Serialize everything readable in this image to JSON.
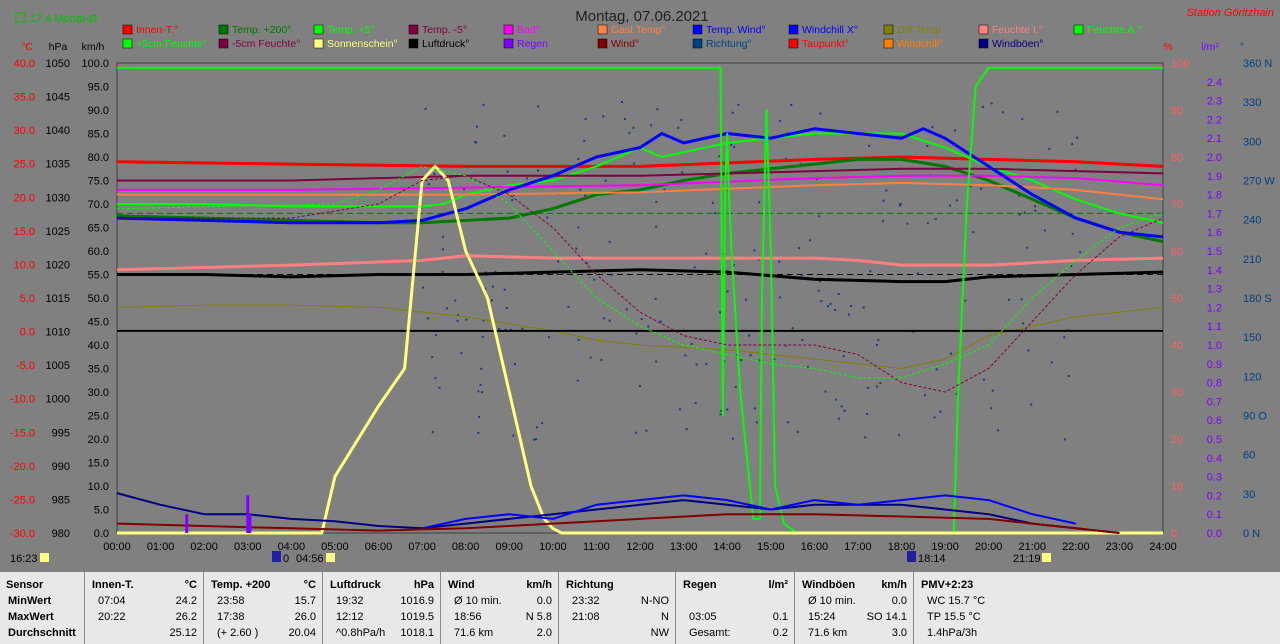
{
  "header": {
    "title": "Montag, 07.06.2021",
    "station": "Station Göritzhain",
    "monat": "17.4 Monat-Ø",
    "time_left": "16:23",
    "sunrise": "04:56",
    "sunset": "21:19",
    "moon": "18:14"
  },
  "legend": [
    {
      "label": "Innen-T.°",
      "color": "#ff0000"
    },
    {
      "label": "Temp. +200°",
      "color": "#007800"
    },
    {
      "label": "Temp. +5°",
      "color": "#00ff00"
    },
    {
      "label": "Temp. -5°",
      "color": "#800040"
    },
    {
      "label": "Bad°",
      "color": "#ff00ff"
    },
    {
      "label": "Gast Temp°",
      "color": "#ff8040"
    },
    {
      "label": "Temp. Wind°",
      "color": "#0000ff"
    },
    {
      "label": "Windchill X°",
      "color": "#0000ff"
    },
    {
      "label": "Diff Temp.",
      "color": "#808000"
    },
    {
      "label": "Feuchte I.°",
      "color": "#ff8080"
    },
    {
      "label": "Feuchte A.°",
      "color": "#00ff00"
    },
    {
      "label": "+5cm Feuchte°",
      "color": "#00ff00"
    },
    {
      "label": "-5cm Feuchte°",
      "color": "#800040"
    },
    {
      "label": "Sonnenschein°",
      "color": "#ffff80"
    },
    {
      "label": "Luftdruck°",
      "color": "#000000"
    },
    {
      "label": "Regen",
      "color": "#8000ff"
    },
    {
      "label": "Wind°",
      "color": "#800000"
    },
    {
      "label": "Richtung°",
      "color": "#004080"
    },
    {
      "label": "Taupunkt°",
      "color": "#ff0000"
    },
    {
      "label": "Windchill°",
      "color": "#ff8000"
    },
    {
      "label": "Windböen°",
      "color": "#000080"
    }
  ],
  "axes": {
    "units": [
      "°C",
      "hPa",
      "km/h",
      "%",
      "l/m²",
      "°"
    ],
    "temp": [
      "40.0",
      "35.0",
      "30.0",
      "25.0",
      "20.0",
      "15.0",
      "10.0",
      "5.0",
      "0.0",
      "-5.0",
      "-10.0",
      "-15.0",
      "-20.0",
      "-25.0",
      "-30.0"
    ],
    "hpa": [
      "1050",
      "1045",
      "1040",
      "1035",
      "1030",
      "1025",
      "1020",
      "1015",
      "1010",
      "1005",
      "1000",
      "995",
      "990",
      "985",
      "980"
    ],
    "kmh": [
      "100.0",
      "95.0",
      "90.0",
      "85.0",
      "80.0",
      "75.0",
      "70.0",
      "65.0",
      "60.0",
      "55.0",
      "50.0",
      "45.0",
      "40.0",
      "35.0",
      "30.0",
      "25.0",
      "20.0",
      "15.0",
      "10.0",
      "5.0",
      "0.0"
    ],
    "pct": [
      "100",
      "90",
      "80",
      "70",
      "60",
      "50",
      "40",
      "30",
      "20",
      "10",
      "0"
    ],
    "rain": [
      "2.4",
      "2.3",
      "2.2",
      "2.1",
      "2.0",
      "1.9",
      "1.8",
      "1.7",
      "1.6",
      "1.5",
      "1.4",
      "1.3",
      "1.2",
      "1.1",
      "1.0",
      "0.9",
      "0.8",
      "0.7",
      "0.6",
      "0.5",
      "0.4",
      "0.3",
      "0.2",
      "0.1",
      "0.0"
    ],
    "dir": [
      "360 N",
      "330",
      "300",
      "270 W",
      "240",
      "210",
      "180 S",
      "150",
      "120",
      "90 O",
      "60",
      "30",
      "0   N"
    ],
    "time": [
      "00:00",
      "01:00",
      "02:00",
      "03:00",
      "04:00",
      "05:00",
      "06:00",
      "07:00",
      "08:00",
      "09:00",
      "10:00",
      "11:00",
      "12:00",
      "13:00",
      "14:00",
      "15:00",
      "16:00",
      "17:00",
      "18:00",
      "19:00",
      "20:00",
      "21:00",
      "22:00",
      "23:00",
      "24:00"
    ]
  },
  "chart_data": {
    "type": "line",
    "title": "Montag, 07.06.2021",
    "x_unit": "hour",
    "xlim": [
      0,
      24
    ],
    "y_left_kmh": [
      0,
      100
    ],
    "series": [
      {
        "name": "Innen-T.°",
        "axis": "kmh",
        "color": "#ff0000",
        "width": 3,
        "x": [
          0,
          4,
          8,
          12,
          16,
          18,
          20,
          22,
          24
        ],
        "y": [
          79,
          78.5,
          78,
          78,
          79.5,
          80,
          79.5,
          79,
          78
        ]
      },
      {
        "name": "Temp. +200°",
        "axis": "kmh",
        "color": "#007800",
        "width": 3,
        "x": [
          0,
          2,
          4,
          6,
          7,
          8,
          9,
          10,
          11,
          12,
          13,
          14,
          15,
          16,
          17,
          18,
          19,
          20,
          21,
          22,
          23,
          24
        ],
        "y": [
          67.5,
          67,
          66.5,
          66,
          66,
          66.5,
          67,
          69,
          72,
          73,
          75,
          76.5,
          77.5,
          78.5,
          79.5,
          79.5,
          78,
          75,
          71,
          67,
          64,
          62
        ]
      },
      {
        "name": "Temp. +5°",
        "axis": "kmh",
        "color": "#00ff00",
        "width": 2,
        "x": [
          0,
          2,
          4,
          6,
          7,
          7.5,
          8,
          9,
          10,
          11,
          12,
          12.5,
          13,
          14,
          15,
          16,
          17,
          18,
          19,
          20,
          21,
          22,
          23,
          24
        ],
        "y": [
          70,
          70,
          69.5,
          69.5,
          69.5,
          70,
          72,
          74,
          75,
          78,
          82,
          80,
          81,
          83,
          84,
          85,
          85,
          85,
          82,
          78,
          75,
          71,
          68,
          66
        ]
      },
      {
        "name": "Temp. -5°",
        "axis": "kmh",
        "color": "#800040",
        "width": 2,
        "x": [
          0,
          4,
          8,
          12,
          16,
          18,
          20,
          22,
          24
        ],
        "y": [
          75,
          75,
          76,
          76,
          77,
          77.5,
          77.5,
          77,
          76.5
        ]
      },
      {
        "name": "Bad°",
        "axis": "kmh",
        "color": "#ff00ff",
        "width": 2,
        "x": [
          0,
          4,
          8,
          12,
          16,
          18,
          20,
          22,
          24
        ],
        "y": [
          73,
          73,
          73.5,
          74,
          75.5,
          76,
          76,
          75.5,
          74
        ]
      },
      {
        "name": "Gast Temp°",
        "axis": "kmh",
        "color": "#ff8040",
        "width": 2,
        "x": [
          0,
          4,
          8,
          12,
          16,
          18,
          20,
          22,
          24
        ],
        "y": [
          72,
          72,
          72,
          72.5,
          74,
          74.5,
          74,
          73,
          71
        ]
      },
      {
        "name": "Temp. Wind°",
        "axis": "kmh",
        "color": "#0000ff",
        "width": 3,
        "x": [
          0,
          2,
          4,
          6,
          7,
          8,
          9,
          10,
          10.5,
          11,
          11.5,
          12,
          12.5,
          13,
          14,
          15,
          16,
          17,
          18,
          18.5,
          19,
          20,
          21,
          22,
          23,
          24
        ],
        "y": [
          67,
          66.5,
          66,
          66,
          66.5,
          69,
          73,
          76,
          78,
          80,
          81,
          82,
          85,
          83,
          85,
          84,
          86,
          85,
          84,
          86,
          84,
          78,
          72,
          67,
          64,
          63
        ]
      },
      {
        "name": "Feuchte I.°",
        "axis": "kmh",
        "color": "#ff8080",
        "width": 3,
        "x": [
          0,
          4,
          7,
          8,
          10,
          12,
          16,
          17,
          18,
          20,
          22,
          24
        ],
        "y": [
          56,
          57,
          58,
          59,
          58.5,
          58.5,
          58.5,
          58,
          57,
          57,
          58,
          58.5
        ]
      },
      {
        "name": "Luftdruck°",
        "axis": "kmh",
        "color": "#000000",
        "width": 3,
        "x": [
          0,
          2,
          4,
          6,
          8,
          10,
          12,
          14,
          16,
          18,
          19,
          20,
          22,
          24
        ],
        "y": [
          55,
          55,
          54.5,
          55,
          55,
          55.5,
          56,
          55.5,
          54,
          53.5,
          53.5,
          54.5,
          55,
          55.5
        ]
      },
      {
        "name": "Diff Temp.",
        "axis": "kmh",
        "color": "#808000",
        "width": 1,
        "x": [
          0,
          2,
          4,
          6,
          8,
          10,
          11,
          12,
          14,
          16,
          17,
          18,
          19,
          20,
          21,
          22,
          23,
          24
        ],
        "y": [
          48,
          48.5,
          48.5,
          48,
          46,
          43,
          41,
          40,
          39,
          37,
          36,
          35,
          37,
          42,
          44,
          46,
          47,
          48
        ]
      },
      {
        "name": "Windchill°",
        "axis": "kmh",
        "color": "#000000",
        "width": 2,
        "x": [
          0,
          24
        ],
        "y": [
          43,
          43
        ]
      },
      {
        "name": "Feuchte A.°",
        "axis": "pct",
        "color": "#00ff00",
        "width": 2,
        "x": [
          0,
          13.85,
          13.9,
          13.95,
          14.0,
          14.05,
          14.1,
          14.3,
          14.6,
          14.75,
          14.8,
          14.9,
          15.0,
          15.1,
          15.3,
          15.6,
          16,
          17,
          18,
          18.5,
          19,
          19.2,
          19.3,
          19.5,
          19.7,
          20,
          24
        ],
        "y": [
          99,
          99,
          25,
          72,
          85,
          70,
          60,
          30,
          3,
          3,
          50,
          90,
          60,
          10,
          2,
          0,
          0,
          0,
          0,
          0,
          0,
          0,
          30,
          70,
          95,
          99,
          99
        ]
      },
      {
        "name": "Sonnenschein°",
        "axis": "pct",
        "color": "#ffff80",
        "width": 3,
        "x": [
          0,
          4.7,
          5,
          6,
          6.6,
          7,
          7.3,
          7.6,
          8,
          8.5,
          9,
          9.5,
          9.8,
          10,
          10.2,
          24
        ],
        "y": [
          0,
          0,
          12,
          27,
          35,
          75,
          78,
          75,
          60,
          50,
          30,
          10,
          3,
          1,
          0,
          0
        ]
      },
      {
        "name": "Windböen°",
        "axis": "kmh",
        "color": "#000080",
        "width": 2,
        "x": [
          0,
          1,
          2,
          3,
          4,
          5,
          6,
          7,
          8,
          9,
          10,
          11,
          12,
          13,
          14,
          15,
          16,
          17,
          18,
          19,
          20,
          21,
          22,
          23
        ],
        "y": [
          8.5,
          6,
          4,
          4,
          3,
          2.5,
          1.5,
          1,
          2,
          3,
          4,
          5,
          6,
          7,
          6,
          5,
          6,
          6,
          6,
          5,
          4,
          2,
          1,
          0
        ]
      },
      {
        "name": "Temp. Wind°",
        "axis": "kmh",
        "color": "#0000ff",
        "width": 2,
        "x": [
          7,
          8,
          9,
          10,
          11,
          12,
          13,
          14,
          15,
          16,
          17,
          18,
          19,
          20,
          21,
          22
        ],
        "y": [
          1,
          3,
          4,
          3,
          6,
          7,
          8,
          7,
          5,
          7,
          6,
          7,
          8,
          7,
          4,
          2
        ]
      },
      {
        "name": "Wind°",
        "axis": "kmh",
        "color": "#800000",
        "width": 2,
        "x": [
          0,
          2,
          4,
          6,
          8,
          10,
          12,
          14,
          16,
          18,
          20,
          22,
          23
        ],
        "y": [
          2,
          1.5,
          1,
          0.5,
          1,
          2,
          3,
          4,
          4,
          3.5,
          3,
          1,
          0
        ]
      },
      {
        "name": "Taupunkt°",
        "axis": "kmh",
        "color": "#800040",
        "width": 1,
        "x": [
          0,
          4,
          6,
          7,
          8,
          9,
          10,
          11,
          12,
          13,
          14,
          15,
          16,
          17,
          18,
          19,
          20,
          21,
          22,
          23,
          24
        ],
        "y": [
          67,
          67,
          70,
          75,
          76,
          72,
          65,
          55,
          47,
          42,
          40,
          40,
          40,
          38,
          32,
          30,
          35,
          45,
          55,
          63,
          67
        ]
      },
      {
        "name": "+5cm Feuchte°",
        "axis": "kmh",
        "color": "#00ff00",
        "width": 1,
        "x": [
          0,
          5,
          6,
          7,
          8,
          9,
          10,
          11,
          12,
          13,
          14,
          15,
          16,
          17,
          18,
          19,
          20,
          21,
          22,
          23,
          24
        ],
        "y": [
          69,
          70,
          73,
          78,
          76,
          70,
          60,
          50,
          44,
          40,
          38,
          36,
          35,
          33,
          33,
          36,
          40,
          50,
          58,
          65,
          68
        ]
      }
    ],
    "rain": {
      "x": [
        1.6,
        3.0,
        3.05
      ],
      "y": [
        0.1,
        0.2,
        0.1
      ]
    }
  },
  "footer": {
    "columns": [
      {
        "header": "Sensor",
        "unit": "",
        "rows": [
          [
            "MinWert",
            ""
          ],
          [
            "MaxWert",
            ""
          ],
          [
            "Durchschnitt",
            ""
          ]
        ]
      },
      {
        "header": "Innen-T.",
        "unit": "°C",
        "rows": [
          [
            "07:04",
            "24.2"
          ],
          [
            "20:22",
            "26.2"
          ],
          [
            "",
            "25.12"
          ]
        ]
      },
      {
        "header": "Temp. +200",
        "unit": "°C",
        "rows": [
          [
            "23:58",
            "15.7"
          ],
          [
            "17:38",
            "26.0"
          ],
          [
            "(+ 2.60 )",
            "20.04"
          ]
        ]
      },
      {
        "header": "Luftdruck",
        "unit": "hPa",
        "rows": [
          [
            "19:32",
            "1016.9"
          ],
          [
            "12:12",
            "1019.5"
          ],
          [
            "^0.8hPa/h",
            "1018.1"
          ]
        ]
      },
      {
        "header": "Wind",
        "unit": "km/h",
        "rows": [
          [
            "Ø 10 min.",
            "0.0"
          ],
          [
            "18:56",
            "N 5.8"
          ],
          [
            "71.6 km",
            "2.0"
          ]
        ]
      },
      {
        "header": "Richtung",
        "unit": "",
        "rows": [
          [
            "23:32",
            "N-NO"
          ],
          [
            "21:08",
            "N"
          ],
          [
            "",
            "NW"
          ]
        ]
      },
      {
        "header": "Regen",
        "unit": "l/m²",
        "rows": [
          [
            "",
            ""
          ],
          [
            "03:05",
            "0.1"
          ],
          [
            "Gesamt:",
            "0.2"
          ]
        ]
      },
      {
        "header": "Windböen",
        "unit": "km/h",
        "rows": [
          [
            "Ø 10 min.",
            "0.0"
          ],
          [
            "15:24",
            "SO 14.1"
          ],
          [
            "71.6 km",
            "3.0"
          ]
        ]
      },
      {
        "header": "PMV+2:23",
        "unit": "",
        "rows": [
          [
            "WC 15.7 °C",
            ""
          ],
          [
            "TP 15.5 °C",
            ""
          ],
          [
            "1.4hPa/3h",
            ""
          ]
        ]
      }
    ]
  }
}
